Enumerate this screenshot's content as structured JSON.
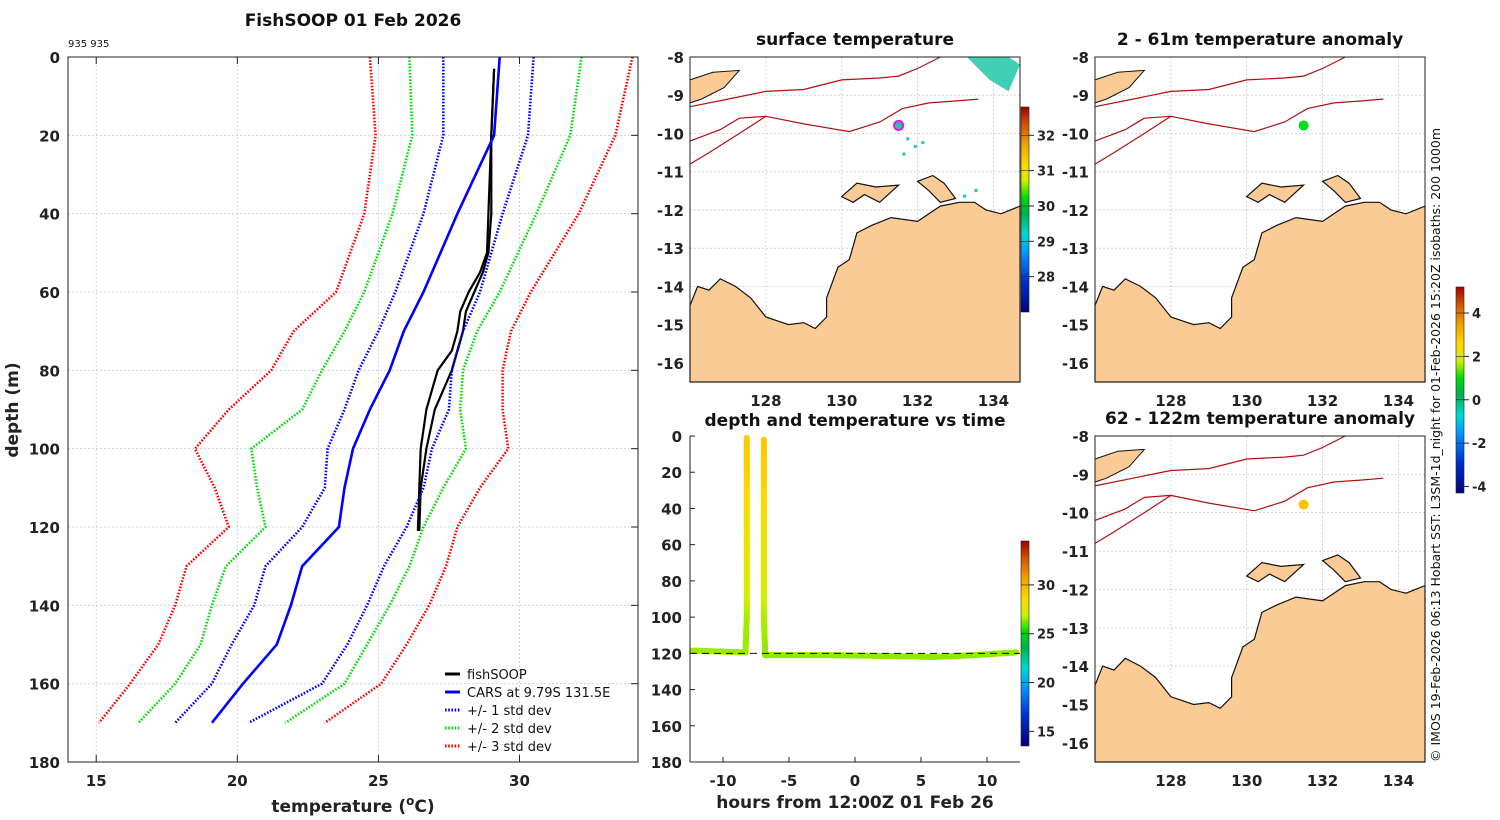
{
  "figure": {
    "credit": "© IMOS 19-Feb-2026 06:13 Hobart SST: L3SM-1d_night for 01-Feb-2026 15:20Z isobaths: 200  1000m"
  },
  "chart_data": [
    {
      "id": "profile",
      "type": "line",
      "title": "FishSOOP 01 Feb 2026",
      "annotation": "935 935",
      "xlabel": "temperature (°C)",
      "xlabel_main": "temperature (",
      "xlabel_sup": "o",
      "xlabel_end": "C)",
      "ylabel": "depth (m)",
      "xlim": [
        14,
        34.2
      ],
      "ylim": [
        180,
        0
      ],
      "xticks": [
        15,
        20,
        25,
        30
      ],
      "yticks": [
        0,
        20,
        40,
        60,
        80,
        100,
        120,
        140,
        160,
        180
      ],
      "grid": true,
      "legend_position": "bottom-right",
      "depth": [
        0,
        20,
        40,
        60,
        70,
        80,
        90,
        100,
        110,
        120,
        130,
        140,
        150,
        160,
        170
      ],
      "series": [
        {
          "name": "fishSOOP",
          "style": "solid",
          "color": "#000000",
          "depth": [
            3,
            20,
            40,
            50,
            55,
            60,
            65,
            70,
            75,
            80,
            85,
            90,
            100,
            110,
            121
          ],
          "values": [
            29.1,
            29.0,
            28.9,
            28.85,
            28.6,
            28.2,
            27.9,
            27.8,
            27.6,
            27.1,
            26.9,
            26.7,
            26.5,
            26.45,
            26.4
          ]
        },
        {
          "name": "fishSOOP",
          "style": "solid",
          "color": "#000000",
          "depth": [
            3,
            20,
            40,
            50,
            55,
            60,
            65,
            70,
            75,
            80,
            85,
            90,
            100,
            110,
            121
          ],
          "values": [
            29.1,
            29.0,
            29.0,
            28.9,
            28.7,
            28.4,
            28.1,
            28.0,
            27.8,
            27.6,
            27.3,
            27.0,
            26.7,
            26.5,
            26.45
          ]
        },
        {
          "name": "CARS at 9.79S 131.5E",
          "style": "solid",
          "color": "#0000ff",
          "values": [
            29.3,
            29.1,
            27.8,
            26.6,
            25.9,
            25.4,
            24.7,
            24.1,
            23.8,
            23.6,
            22.3,
            21.9,
            21.4,
            20.2,
            19.1
          ]
        },
        {
          "name": "+/- 1 std dev",
          "style": "dotted",
          "color": "#0000ff",
          "values": [
            27.3,
            27.3,
            26.6,
            25.6,
            25.0,
            24.3,
            23.8,
            23.2,
            23.1,
            22.3,
            21.0,
            20.6,
            19.8,
            19.1,
            17.8
          ]
        },
        {
          "name": "+/- 1 std dev upper",
          "style": "dotted",
          "color": "#0000ff",
          "values": [
            30.5,
            30.3,
            29.4,
            28.6,
            28.0,
            27.6,
            27.5,
            26.9,
            26.6,
            26.0,
            25.2,
            24.6,
            23.9,
            23.0,
            20.4
          ]
        },
        {
          "name": "+/- 2 std dev",
          "style": "dotted",
          "color": "#00dd00",
          "values": [
            26.1,
            26.2,
            25.5,
            24.5,
            23.8,
            23.0,
            22.3,
            20.5,
            20.7,
            21.0,
            19.6,
            19.1,
            18.7,
            17.8,
            16.5
          ]
        },
        {
          "name": "+/- 2 std dev upper",
          "style": "dotted",
          "color": "#00dd00",
          "values": [
            32.2,
            31.8,
            30.6,
            29.3,
            28.5,
            28.0,
            27.9,
            28.1,
            27.3,
            26.6,
            26.1,
            25.4,
            24.6,
            23.8,
            21.7
          ]
        },
        {
          "name": "+/- 3 std dev",
          "style": "dotted",
          "color": "#ff0000",
          "values": [
            24.7,
            24.9,
            24.5,
            23.5,
            22.0,
            21.2,
            19.7,
            18.5,
            19.2,
            19.7,
            18.2,
            17.8,
            17.2,
            16.2,
            15.1
          ]
        },
        {
          "name": "+/- 3 std dev upper",
          "style": "dotted",
          "color": "#ff0000",
          "values": [
            34.0,
            33.4,
            32.1,
            30.4,
            29.7,
            29.4,
            29.4,
            29.6,
            28.6,
            27.8,
            27.4,
            26.8,
            26.0,
            25.1,
            23.1
          ]
        }
      ],
      "legend": [
        {
          "label": "fishSOOP",
          "style": "solid",
          "color": "#000000"
        },
        {
          "label": "CARS at 9.79S 131.5E",
          "style": "solid",
          "color": "#0000ff"
        },
        {
          "label": "+/- 1 std dev",
          "style": "dotted",
          "color": "#0000ff"
        },
        {
          "label": "+/- 2 std dev",
          "style": "dotted",
          "color": "#00dd00"
        },
        {
          "label": "+/- 3 std dev",
          "style": "dotted",
          "color": "#ff0000"
        }
      ]
    },
    {
      "id": "sst-map",
      "type": "heatmap",
      "title": "surface temperature",
      "xlim": [
        126,
        134.7
      ],
      "ylim": [
        -16.5,
        -8
      ],
      "xticks": [
        128,
        130,
        132,
        134
      ],
      "yticks": [
        -8,
        -9,
        -10,
        -11,
        -12,
        -13,
        -14,
        -15,
        -16
      ],
      "marker": {
        "lon": 131.5,
        "lat": -9.79,
        "color": "#e020e0",
        "style": "ring"
      },
      "colorbar": {
        "ticks": [
          28,
          29,
          30,
          31,
          32
        ],
        "range": [
          27.0,
          32.8
        ]
      }
    },
    {
      "id": "anomaly-shallow",
      "type": "scatter",
      "title": "2 - 61m temperature anomaly",
      "xlim": [
        126,
        134.7
      ],
      "ylim": [
        -16.5,
        -8
      ],
      "xticks": [
        128,
        130,
        132,
        134
      ],
      "yticks": [
        -8,
        -9,
        -10,
        -11,
        -12,
        -13,
        -14,
        -15,
        -16
      ],
      "points": [
        {
          "lon": 131.5,
          "lat": -9.79,
          "value": 0.2,
          "color": "#00dd22"
        }
      ]
    },
    {
      "id": "anomaly-deep",
      "type": "scatter",
      "title": "62 - 122m temperature anomaly",
      "xlim": [
        126,
        134.7
      ],
      "ylim": [
        -16.5,
        -8
      ],
      "xticks": [
        128,
        130,
        132,
        134
      ],
      "yticks": [
        -8,
        -9,
        -10,
        -11,
        -12,
        -13,
        -14,
        -15,
        -16
      ],
      "points": [
        {
          "lon": 131.5,
          "lat": -9.79,
          "value": 2.6,
          "color": "#ffc000"
        }
      ],
      "colorbar": {
        "ticks": [
          -4,
          -2,
          0,
          2,
          4
        ],
        "range": [
          -4.3,
          5.2
        ]
      }
    },
    {
      "id": "depth-time",
      "type": "scatter",
      "title": "depth and temperature vs time",
      "xlabel": "hours from 12:00Z 01 Feb 26",
      "xlim": [
        -12.5,
        12.5
      ],
      "ylim": [
        180,
        0
      ],
      "xticks": [
        -10,
        -5,
        0,
        5,
        10
      ],
      "yticks": [
        0,
        20,
        40,
        60,
        80,
        100,
        120,
        140,
        160,
        180
      ],
      "reference_depth": 120,
      "track": [
        {
          "hours": -12.3,
          "depth": 118.5,
          "temp": 26.5
        },
        {
          "hours": -8.3,
          "depth": 119.5,
          "temp": 26.5
        },
        {
          "hours": -8.2,
          "depth": 100,
          "temp": 26.6
        },
        {
          "hours": -8.2,
          "depth": 60,
          "temp": 27.8
        },
        {
          "hours": -8.2,
          "depth": 20,
          "temp": 28.9
        },
        {
          "hours": -8.2,
          "depth": 1,
          "temp": 29.1
        },
        {
          "hours": -6.9,
          "depth": 2,
          "temp": 29.1
        },
        {
          "hours": -6.9,
          "depth": 20,
          "temp": 29.0
        },
        {
          "hours": -6.9,
          "depth": 60,
          "temp": 28.0
        },
        {
          "hours": -6.9,
          "depth": 100,
          "temp": 26.7
        },
        {
          "hours": -6.8,
          "depth": 121,
          "temp": 26.4
        },
        {
          "hours": -2,
          "depth": 121,
          "temp": 26.4
        },
        {
          "hours": 3,
          "depth": 121.5,
          "temp": 26.4
        },
        {
          "hours": 6,
          "depth": 122,
          "temp": 26.4
        },
        {
          "hours": 9,
          "depth": 121,
          "temp": 26.4
        },
        {
          "hours": 12.2,
          "depth": 119.5,
          "temp": 26.4
        }
      ],
      "colorbar": {
        "ticks": [
          15,
          20,
          25,
          30
        ],
        "range": [
          13.5,
          34.5
        ]
      }
    }
  ]
}
